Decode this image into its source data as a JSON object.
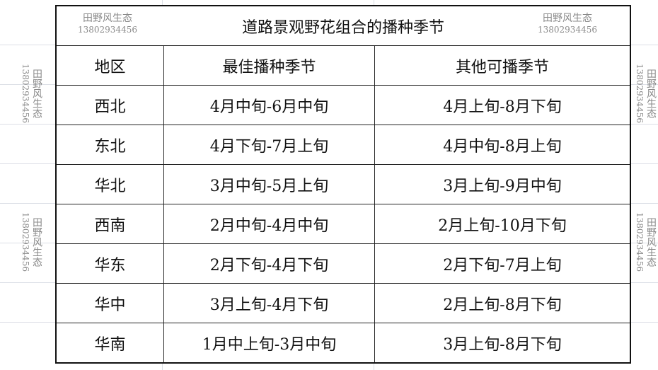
{
  "table": {
    "title": "道路景观野花组合的播种季节",
    "headers": [
      "地区",
      "最佳播种季节",
      "其他可播季节"
    ],
    "rows": [
      [
        "西北",
        "4月中旬-6月中旬",
        "4月上旬-8月下旬"
      ],
      [
        "东北",
        "4月下旬-7月上旬",
        "4月中旬-8月上旬"
      ],
      [
        "华北",
        "3月中旬-5月上旬",
        "3月上旬-9月中旬"
      ],
      [
        "西南",
        "2月中旬-4月中旬",
        "2月上旬-10月下旬"
      ],
      [
        "华东",
        "2月下旬-4月下旬",
        "2月下旬-7月上旬"
      ],
      [
        "华中",
        "3月上旬-4月下旬",
        "2月上旬-8月下旬"
      ],
      [
        "华南",
        "1月中上旬-3月中旬",
        "3月上旬-8月下旬"
      ]
    ]
  },
  "watermark": {
    "name": "田野风生态",
    "phone": "13802934456"
  }
}
